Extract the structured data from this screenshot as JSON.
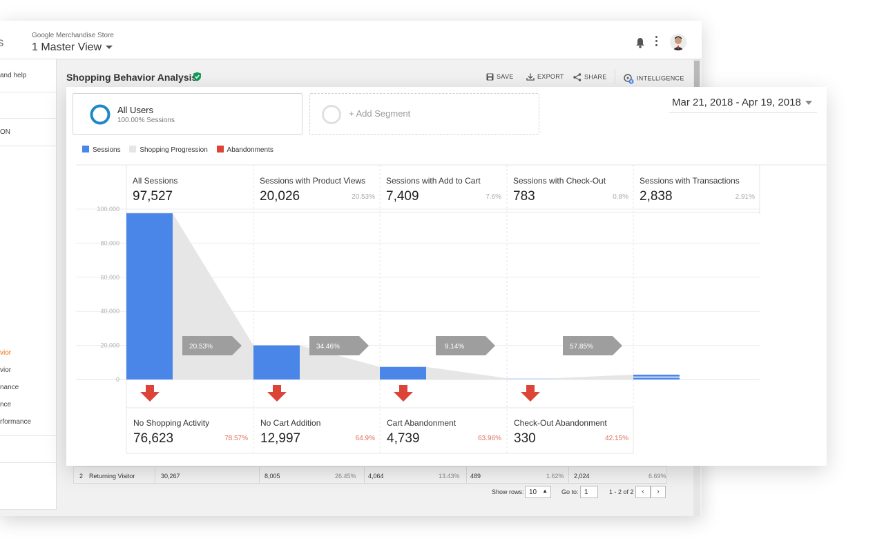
{
  "app": {
    "header_cut_text": "S",
    "account": "Google Merchandise Store",
    "view": "1 Master View"
  },
  "sidebar": {
    "items": [
      {
        "label": "and help"
      },
      {
        "label": "ON"
      },
      {
        "label": "vior",
        "active": true
      },
      {
        "label": "vior"
      },
      {
        "label": "nance"
      },
      {
        "label": "nce"
      },
      {
        "label": "rformance"
      }
    ]
  },
  "report": {
    "title": "Shopping Behavior Analysis",
    "toolbar": {
      "save": "SAVE",
      "export": "EXPORT",
      "share": "SHARE",
      "intelligence": "INTELLIGENCE"
    }
  },
  "segments": {
    "all_users": {
      "name": "All Users",
      "sub": "100.00% Sessions"
    },
    "add_segment": "+ Add Segment"
  },
  "date_range": "Mar 21, 2018 - Apr 19, 2018",
  "legend": [
    {
      "label": "Sessions",
      "color": "#4a86e8"
    },
    {
      "label": "Shopping Progression",
      "color": "#e6e6e6"
    },
    {
      "label": "Abandonments",
      "color": "#db4437"
    }
  ],
  "chart_data": {
    "type": "bar",
    "title": "",
    "ylim": [
      0,
      100000
    ],
    "y_ticks": [
      "100,000",
      "80,000",
      "60,000",
      "40,000",
      "20,000",
      "0"
    ],
    "y_tick_values": [
      100000,
      80000,
      60000,
      40000,
      20000,
      0
    ],
    "stages": [
      {
        "label": "All Sessions",
        "value_text": "97,527",
        "value": 97527,
        "pct": ""
      },
      {
        "label": "Sessions with Product Views",
        "value_text": "20,026",
        "value": 20026,
        "pct": "20.53%"
      },
      {
        "label": "Sessions with Add to Cart",
        "value_text": "7,409",
        "value": 7409,
        "pct": "7.6%"
      },
      {
        "label": "Sessions with Check-Out",
        "value_text": "783",
        "value": 783,
        "pct": "0.8%"
      },
      {
        "label": "Sessions with Transactions",
        "value_text": "2,838",
        "value": 2838,
        "pct": "2.91%"
      }
    ],
    "progression_rates": [
      "20.53%",
      "34.46%",
      "9.14%",
      "57.85%"
    ],
    "abandonments": [
      {
        "label": "No Shopping Activity",
        "value_text": "76,623",
        "pct": "78.57%"
      },
      {
        "label": "No Cart Addition",
        "value_text": "12,997",
        "pct": "64.9%"
      },
      {
        "label": "Cart Abandonment",
        "value_text": "4,739",
        "pct": "63.96%"
      },
      {
        "label": "Check-Out Abandonment",
        "value_text": "330",
        "pct": "42.15%"
      }
    ],
    "colors": {
      "bar": "#4a86e8",
      "progression": "#e6e6e6",
      "abandon": "#db4437",
      "rate_box": "#9e9e9e"
    }
  },
  "table": {
    "row": {
      "index": "2",
      "name": "Returning Visitor",
      "sessions": "30,267",
      "product_views": "8,005",
      "product_views_pct": "26.45%",
      "add_to_cart": "4,064",
      "add_to_cart_pct": "13.43%",
      "checkout": "489",
      "checkout_pct": "1.62%",
      "transactions": "2,024",
      "transactions_pct": "6.69%"
    },
    "show_rows_label": "Show rows:",
    "show_rows_value": "10",
    "goto_label": "Go to:",
    "goto_value": "1",
    "range": "1 - 2 of 2"
  }
}
